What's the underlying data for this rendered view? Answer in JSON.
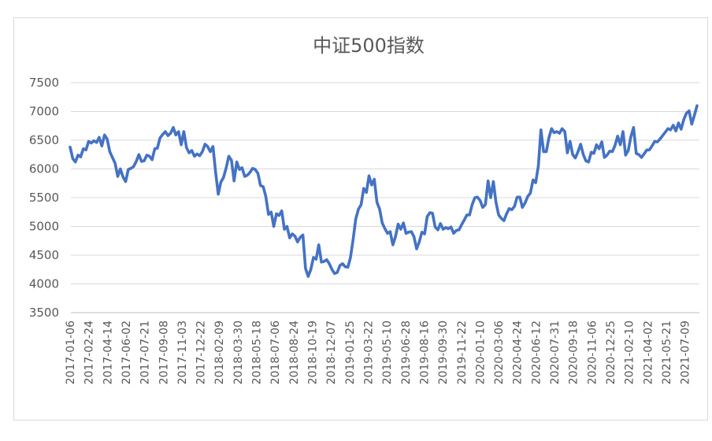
{
  "chart_data": {
    "type": "line",
    "title": "中证500指数",
    "xlabel": "",
    "ylabel": "",
    "ylim": [
      3500,
      7500
    ],
    "yticks": [
      7500,
      7000,
      6500,
      6000,
      5500,
      5000,
      4500,
      4000,
      3500
    ],
    "x_tick_labels": [
      "2017-01-06",
      "2017-02-24",
      "2017-04-14",
      "2017-06-02",
      "2017-07-21",
      "2017-09-08",
      "2017-11-03",
      "2017-12-22",
      "2018-02-09",
      "2018-03-30",
      "2018-05-18",
      "2018-07-06",
      "2018-08-24",
      "2018-10-19",
      "2018-12-07",
      "2019-01-25",
      "2019-03-22",
      "2019-05-10",
      "2019-06-28",
      "2019-08-16",
      "2019-09-30",
      "2019-11-22",
      "2020-01-10",
      "2020-03-06",
      "2020-04-24",
      "2020-06-12",
      "2020-07-31",
      "2020-09-18",
      "2020-11-06",
      "2020-12-25",
      "2021-02-10",
      "2021-04-02",
      "2021-05-21",
      "2021-07-09"
    ],
    "grid": true,
    "legend": "none",
    "series": [
      {
        "color": "#4472c4",
        "values": [
          6380,
          6180,
          6120,
          6240,
          6210,
          6350,
          6330,
          6480,
          6450,
          6490,
          6460,
          6550,
          6400,
          6590,
          6520,
          6300,
          6200,
          6100,
          5870,
          6000,
          5860,
          5780,
          5990,
          6010,
          6040,
          6130,
          6250,
          6130,
          6140,
          6240,
          6220,
          6160,
          6350,
          6360,
          6540,
          6600,
          6650,
          6580,
          6620,
          6720,
          6590,
          6650,
          6420,
          6650,
          6370,
          6280,
          6320,
          6220,
          6260,
          6230,
          6300,
          6430,
          6390,
          6300,
          6390,
          5950,
          5560,
          5770,
          5850,
          6020,
          6220,
          6150,
          5790,
          6120,
          5990,
          6020,
          5870,
          5890,
          5940,
          6010,
          5990,
          5920,
          5710,
          5690,
          5520,
          5210,
          5250,
          5000,
          5220,
          5190,
          5270,
          4950,
          5000,
          4800,
          4870,
          4830,
          4730,
          4810,
          4850,
          4270,
          4130,
          4250,
          4460,
          4430,
          4680,
          4380,
          4390,
          4420,
          4350,
          4250,
          4180,
          4200,
          4320,
          4350,
          4300,
          4290,
          4460,
          4780,
          5130,
          5300,
          5380,
          5660,
          5590,
          5880,
          5720,
          5820,
          5420,
          5300,
          5060,
          4960,
          4880,
          4910,
          4680,
          4820,
          5040,
          4950,
          5060,
          4880,
          4900,
          4910,
          4820,
          4610,
          4730,
          4900,
          4870,
          5170,
          5240,
          5230,
          4990,
          4940,
          5050,
          4950,
          4980,
          4960,
          4990,
          4880,
          4930,
          4940,
          5030,
          5110,
          5200,
          5200,
          5380,
          5500,
          5510,
          5450,
          5330,
          5380,
          5790,
          5500,
          5780,
          5420,
          5200,
          5140,
          5100,
          5220,
          5310,
          5290,
          5350,
          5510,
          5510,
          5330,
          5410,
          5520,
          5580,
          5810,
          5760,
          6050,
          6680,
          6300,
          6300,
          6540,
          6700,
          6630,
          6650,
          6620,
          6700,
          6650,
          6280,
          6480,
          6250,
          6190,
          6300,
          6430,
          6250,
          6140,
          6120,
          6290,
          6270,
          6420,
          6350,
          6470,
          6200,
          6240,
          6310,
          6300,
          6410,
          6570,
          6420,
          6650,
          6240,
          6320,
          6560,
          6720,
          6270,
          6250,
          6200,
          6260,
          6330,
          6330,
          6400,
          6480,
          6470,
          6520,
          6580,
          6640,
          6700,
          6680,
          6760,
          6660,
          6800,
          6690,
          6860,
          6970,
          7010,
          6780,
          6930,
          7100
        ]
      }
    ]
  }
}
